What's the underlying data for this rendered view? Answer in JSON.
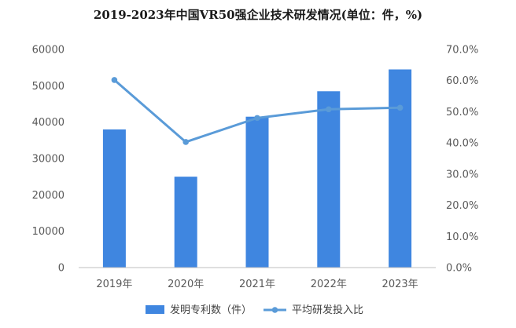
{
  "chart_data": {
    "type": "bar",
    "title": "2019-2023年中国VR50强企业技术研发情况(单位：件，%)",
    "categories": [
      "2019年",
      "2020年",
      "2021年",
      "2022年",
      "2023年"
    ],
    "series": [
      {
        "name": "发明专利数（件）",
        "type": "bar",
        "axis": "left",
        "values": [
          38000,
          25000,
          41500,
          48500,
          54500
        ]
      },
      {
        "name": "平均研发投入比",
        "type": "line",
        "axis": "right",
        "values": [
          60.2,
          40.3,
          48.0,
          50.8,
          51.3
        ]
      }
    ],
    "y_left": {
      "min": 0,
      "max": 60000,
      "ticks": [
        "0",
        "10000",
        "20000",
        "30000",
        "40000",
        "50000",
        "60000"
      ]
    },
    "y_right": {
      "min": 0,
      "max": 70,
      "ticks": [
        "0.0%",
        "10.0%",
        "20.0%",
        "30.0%",
        "40.0%",
        "50.0%",
        "60.0%",
        "70.0%"
      ]
    },
    "legend_position": "bottom",
    "grid": false,
    "colors": {
      "bar": "#3f86e0",
      "line": "#5a9bd8",
      "axis": "#bfbfbf"
    }
  }
}
